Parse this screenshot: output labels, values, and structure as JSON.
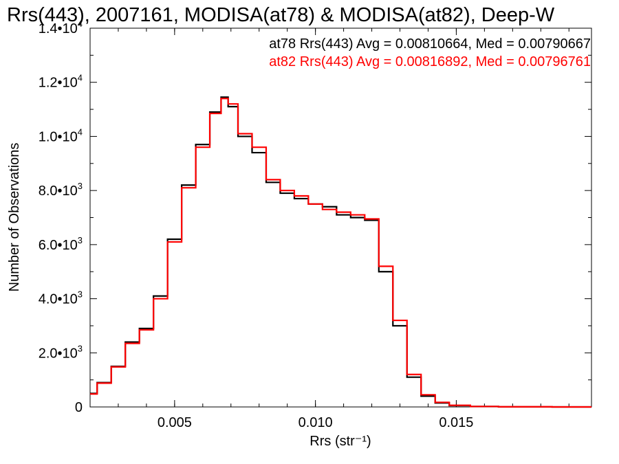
{
  "chart_data": {
    "type": "line",
    "title": "Rrs(443), 2007161, MODISA(at78) & MODISA(at82), Deep-W",
    "xlabel": "Rrs (str⁻¹)",
    "ylabel": "Number of Observations",
    "xlim": [
      0.002,
      0.0198
    ],
    "ylim": [
      0,
      14000
    ],
    "xticks": [
      0.005,
      0.01,
      0.015
    ],
    "xtick_labels": [
      "0.005",
      "0.010",
      "0.015"
    ],
    "yticks": [
      0,
      2000,
      4000,
      6000,
      8000,
      10000,
      12000,
      14000
    ],
    "ytick_mantissa": [
      "0",
      "2.0•10",
      "4.0•10",
      "6.0•10",
      "8.0•10",
      "1.0•10",
      "1.2•10",
      "1.4•10"
    ],
    "ytick_exponent": [
      "",
      "3",
      "3",
      "3",
      "3",
      "4",
      "4",
      "4"
    ],
    "grid": false,
    "legend_position": "top-right",
    "x": [
      0.002,
      0.0025,
      0.003,
      0.0035,
      0.004,
      0.0045,
      0.005,
      0.0055,
      0.006,
      0.0065,
      0.0068,
      0.007,
      0.0075,
      0.008,
      0.0085,
      0.009,
      0.0095,
      0.01,
      0.0105,
      0.011,
      0.0115,
      0.012,
      0.0125,
      0.013,
      0.0135,
      0.014,
      0.0145,
      0.015,
      0.016,
      0.017,
      0.0198
    ],
    "series": [
      {
        "name": "at78",
        "color": "#000000",
        "annotation": "at78 Rrs(443) Avg = 0.00810664, Med = 0.00790667",
        "values": [
          500,
          900,
          1500,
          2400,
          2900,
          4100,
          6200,
          8200,
          9700,
          10900,
          11450,
          11100,
          10000,
          9400,
          8300,
          7900,
          7700,
          7500,
          7400,
          7100,
          7000,
          6900,
          5000,
          3000,
          1100,
          400,
          150,
          50,
          15,
          5,
          0
        ]
      },
      {
        "name": "at82",
        "color": "#ff0000",
        "annotation": "at82 Rrs(443) Avg = 0.00816892, Med = 0.00796761",
        "values": [
          480,
          880,
          1480,
          2350,
          2850,
          4000,
          6100,
          8100,
          9600,
          10850,
          11400,
          11200,
          10100,
          9600,
          8400,
          8000,
          7800,
          7500,
          7300,
          7200,
          7100,
          6950,
          5200,
          3200,
          1200,
          450,
          170,
          60,
          18,
          6,
          0
        ]
      }
    ]
  }
}
